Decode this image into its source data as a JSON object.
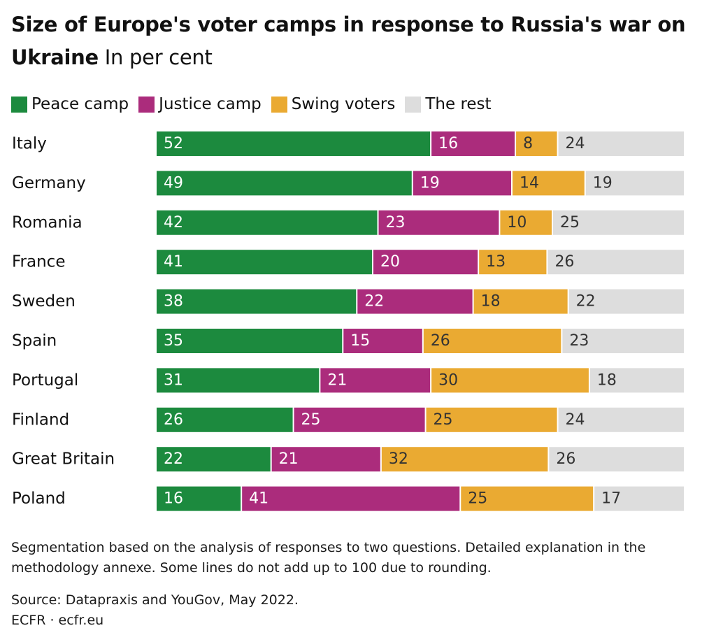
{
  "header": {
    "title": "Size of Europe's voter camps in response to Russia's war on Ukraine",
    "subtitle": "In per cent"
  },
  "colors": {
    "peace": "#1c8a3e",
    "justice": "#ab2c7c",
    "swing": "#eaaa32",
    "rest": "#dddddd",
    "label_on_dark": "#ffffff",
    "label_on_light": "#333333"
  },
  "chart_data": {
    "type": "bar",
    "orientation": "horizontal",
    "stacked": true,
    "title": "Size of Europe's voter camps in response to Russia's war on Ukraine",
    "subtitle": "In per cent",
    "xlabel": "",
    "ylabel": "",
    "xlim": [
      0,
      100
    ],
    "grid": false,
    "legend_position": "top-left",
    "categories": [
      "Italy",
      "Germany",
      "Romania",
      "France",
      "Sweden",
      "Spain",
      "Portugal",
      "Finland",
      "Great Britain",
      "Poland"
    ],
    "series": [
      {
        "name": "Peace camp",
        "key": "peace",
        "values": [
          52,
          49,
          42,
          41,
          38,
          35,
          31,
          26,
          22,
          16
        ]
      },
      {
        "name": "Justice camp",
        "key": "justice",
        "values": [
          16,
          19,
          23,
          20,
          22,
          15,
          21,
          25,
          21,
          41
        ]
      },
      {
        "name": "Swing voters",
        "key": "swing",
        "values": [
          8,
          14,
          10,
          13,
          18,
          26,
          30,
          25,
          32,
          25
        ]
      },
      {
        "name": "The rest",
        "key": "rest",
        "values": [
          24,
          19,
          25,
          26,
          22,
          23,
          18,
          24,
          26,
          17
        ]
      }
    ]
  },
  "footer": {
    "note": "Segmentation based on the analysis of responses to two questions. Detailed explanation in the methodology annexe. Some lines do not add up to 100 due to rounding.",
    "source": "Source: Datapraxis and YouGov, May 2022.",
    "credit": "ECFR · ecfr.eu"
  }
}
